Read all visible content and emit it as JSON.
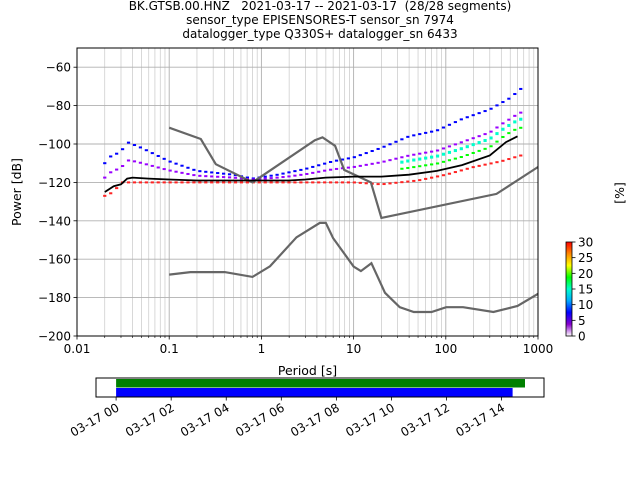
{
  "title_lines": [
    "BK.GTSB.00.HNZ   2021-03-17 -- 2021-03-17  (28/28 segments)",
    "sensor_type EPISENSORES-T sensor_sn 7974",
    "datalogger_type Q330S+ datalogger_sn 6433"
  ],
  "chart_data": [
    {
      "type": "line",
      "role": "psd",
      "xlabel": "Period [s]",
      "ylabel": "Power [dB]",
      "x_scale": "log",
      "xlim": [
        0.01,
        1000
      ],
      "ylim": [
        -200,
        -50
      ],
      "xtick_values": [
        0.01,
        0.1,
        1,
        10,
        100,
        1000
      ],
      "xtick_labels": [
        "0.01",
        "0.1",
        "1",
        "10",
        "100",
        "1000"
      ],
      "ytick_values": [
        -60,
        -80,
        -100,
        -120,
        -140,
        -160,
        -180,
        -200
      ],
      "ytick_labels": [
        "−60",
        "−80",
        "−100",
        "−120",
        "−140",
        "−160",
        "−180",
        "−200"
      ],
      "grid": true,
      "noise_models": [
        {
          "x": [
            0.1,
            0.22,
            0.32,
            0.8,
            3.8,
            4.6,
            6.3,
            7.9,
            15.4,
            20,
            354.8,
            1000
          ],
          "y": [
            -91.5,
            -97.4,
            -110.5,
            -120,
            -98,
            -96.5,
            -101,
            -113.5,
            -120,
            -138.5,
            -126,
            -112
          ]
        },
        {
          "x": [
            0.1,
            0.17,
            0.4,
            0.8,
            1.24,
            2.4,
            4.3,
            5,
            6,
            10,
            12,
            15.6,
            21.9,
            31.6,
            45,
            70,
            101,
            154,
            328,
            600,
            1000
          ],
          "y": [
            -168,
            -166.7,
            -166.7,
            -169.2,
            -163.7,
            -148.6,
            -141.1,
            -141.1,
            -149,
            -163.8,
            -166.2,
            -162.1,
            -177.5,
            -185,
            -187.5,
            -187.5,
            -185,
            -185,
            -187.5,
            -184.4,
            -178
          ]
        }
      ],
      "mode_curve": {
        "x": [
          0.02,
          0.025,
          0.03,
          0.035,
          0.04,
          0.06,
          0.1,
          0.2,
          0.5,
          1,
          2,
          3,
          5,
          10,
          20,
          40,
          80,
          150,
          300,
          450,
          600
        ],
        "y": [
          -125,
          -122,
          -121,
          -118,
          -117.5,
          -118,
          -118.5,
          -119,
          -119,
          -119,
          -119,
          -118.5,
          -117.5,
          -117,
          -117,
          -116,
          -114,
          -111,
          -106,
          -99,
          -96
        ]
      },
      "upper_envelope": {
        "x": [
          0.02,
          0.022,
          0.03,
          0.035,
          0.05,
          0.1,
          0.2,
          0.5,
          0.8,
          1.5,
          3,
          6,
          10,
          20,
          40,
          80,
          150,
          300,
          500,
          700
        ],
        "y": [
          -110,
          -107,
          -104,
          -99,
          -102,
          -109,
          -114,
          -116,
          -118,
          -116,
          -113,
          -109,
          -107,
          -102,
          -96,
          -93,
          -87,
          -82,
          -76,
          -70
        ]
      },
      "lower_envelope": {
        "x": [
          0.02,
          0.025,
          0.03,
          0.1,
          1,
          10,
          20,
          50,
          100,
          200,
          400,
          650
        ],
        "y": [
          -127,
          -125,
          -120,
          -120,
          -120,
          -120,
          -121,
          -119,
          -116,
          -112,
          -109,
          -106
        ]
      }
    },
    {
      "type": "heatmap",
      "role": "colorbar",
      "label": "[%]",
      "range": [
        0,
        30
      ],
      "tick_values": [
        0,
        5,
        10,
        15,
        20,
        25,
        30
      ],
      "tick_labels": [
        "0",
        "5",
        "10",
        "15",
        "20",
        "25",
        "30"
      ],
      "colors": [
        "#ffffff",
        "#8800cc",
        "#0000ff",
        "#00aaff",
        "#00ffcc",
        "#00ff00",
        "#ffff00",
        "#ff8800",
        "#ff0000"
      ]
    },
    {
      "type": "bar",
      "role": "data_coverage",
      "xtick_labels": [
        "03-17 00",
        "03-17 02",
        "03-17 04",
        "03-17 06",
        "03-17 08",
        "03-17 10",
        "03-17 12",
        "03-17 14"
      ],
      "xlim_hours": [
        -0.73,
        15.54
      ],
      "bars": [
        {
          "color": "#008000",
          "start_hour": 0.0,
          "end_hour": 14.85
        },
        {
          "color": "#0000ff",
          "start_hour": 0.0,
          "end_hour": 14.4
        }
      ]
    }
  ]
}
